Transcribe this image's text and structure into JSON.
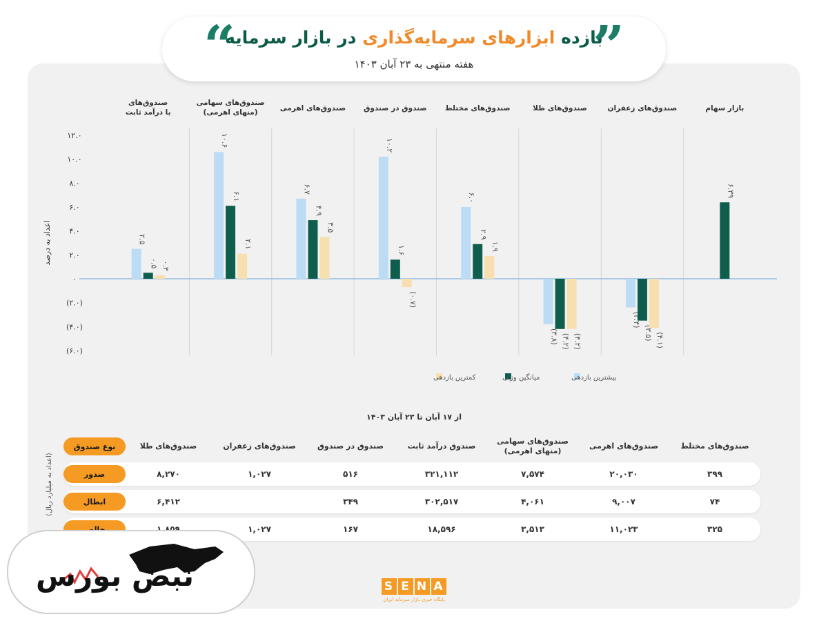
{
  "header": {
    "title_part1": "بازده",
    "title_accent": "ابزارهای سرمایه‌گذاری",
    "title_part2": "در بازار سرمایه",
    "subtitle": "هفته منتهی به ۲۳ آبان ۱۴۰۳"
  },
  "colors": {
    "max": "#bcdcf6",
    "avg": "#0f5e4d",
    "min": "#f8dfb0",
    "accent_orange": "#f59a23",
    "title_green": "#0c5a48"
  },
  "chart_data": {
    "type": "bar",
    "ylabel": "اعداد به درصد",
    "ylim": [
      -6,
      12
    ],
    "yticks": [
      12,
      10,
      8,
      6,
      4,
      2,
      0,
      -2,
      -4,
      -6
    ],
    "ytick_labels": [
      "۱۲.۰",
      "۱۰.۰",
      "۸.۰",
      "۶.۰",
      "۴.۰",
      "۲.۰",
      "۰",
      "(۲.۰)",
      "(۴.۰)",
      "(۶.۰)"
    ],
    "categories": [
      "صندوق‌های با درآمد ثابت",
      "صندوق‌های سهامی (منهای اهرمی)",
      "صندوق‌های اهرمی",
      "صندوق در صندوق",
      "صندوق‌های مختلط",
      "صندوق‌های طلا",
      "صندوق‌های زعفران",
      "بازار سهام"
    ],
    "category_lines": [
      [
        "صندوق‌های",
        "با درآمد ثابت"
      ],
      [
        "صندوق‌های سهامی",
        "(منهای اهرمی)"
      ],
      [
        "صندوق‌های اهرمی"
      ],
      [
        "صندوق در صندوق"
      ],
      [
        "صندوق‌های مختلط"
      ],
      [
        "صندوق‌های طلا"
      ],
      [
        "صندوق‌های زعفران"
      ],
      [
        "بازار سهام"
      ]
    ],
    "series": [
      {
        "name": "بیشترین بازدهی",
        "values": [
          2.5,
          10.6,
          6.7,
          10.2,
          6.0,
          -3.8,
          -2.4,
          null
        ],
        "labels": [
          "۲.۵",
          "۱۰.۶",
          "۶.۷",
          "۱۰.۲",
          "۶.۰",
          "(۳.۸)",
          "(۲.۴)",
          ""
        ]
      },
      {
        "name": "میانگین وزنی",
        "values": [
          0.5,
          6.1,
          4.9,
          1.6,
          2.9,
          -4.2,
          -3.5,
          6.39
        ],
        "labels": [
          "۰.۵",
          "۶.۱",
          "۴.۹",
          "۱.۶",
          "۲.۹",
          "(۴.۲)",
          "(۳.۵)",
          "۶.۳۹"
        ]
      },
      {
        "name": "کمترین بازدهی",
        "values": [
          0.3,
          2.1,
          3.5,
          -0.7,
          1.9,
          -4.2,
          -4.1,
          null
        ],
        "labels": [
          "۰.۳",
          "۲.۱",
          "۳.۵",
          "(۰.۷)",
          "۱.۹",
          "(۴.۲)",
          "(۴.۱)",
          ""
        ]
      }
    ],
    "legend_position": "bottom"
  },
  "table": {
    "title": "از ۱۷ آبان تا ۲۳ آبان ۱۴۰۳",
    "side_note": "(اعداد به میلیارد ریال)",
    "header_label": "نوع صندوق",
    "columns": [
      "صندوق‌های مختلط",
      "صندوق‌های اهرمی",
      "صندوق‌های سهامی (منهای اهرمی)",
      "صندوق درآمد ثابت",
      "صندوق در صندوق",
      "صندوق‌های زعفران",
      "صندوق‌های طلا"
    ],
    "rows": [
      {
        "label": "صدور",
        "values": [
          "۳۹۹",
          "۲۰,۰۳۰",
          "۷,۵۷۴",
          "۳۲۱,۱۱۲",
          "۵۱۶",
          "۱,۰۲۷",
          "۸,۲۷۰"
        ]
      },
      {
        "label": "ابطال",
        "values": [
          "۷۴",
          "۹,۰۰۷",
          "۴,۰۶۱",
          "۳۰۲,۵۱۷",
          "۳۴۹",
          "",
          "۶,۴۱۲"
        ]
      },
      {
        "label": "خالص",
        "values": [
          "۳۲۵",
          "۱۱,۰۲۳",
          "۳,۵۱۳",
          "۱۸,۵۹۶",
          "۱۶۷",
          "۱,۰۲۷",
          "۱,۸۵۹"
        ]
      }
    ]
  },
  "branding": {
    "logo_text": "نبض بورس",
    "sena_word": "SENA",
    "sena_sub": "پایگاه خبری بازار سرمایه ایران"
  }
}
